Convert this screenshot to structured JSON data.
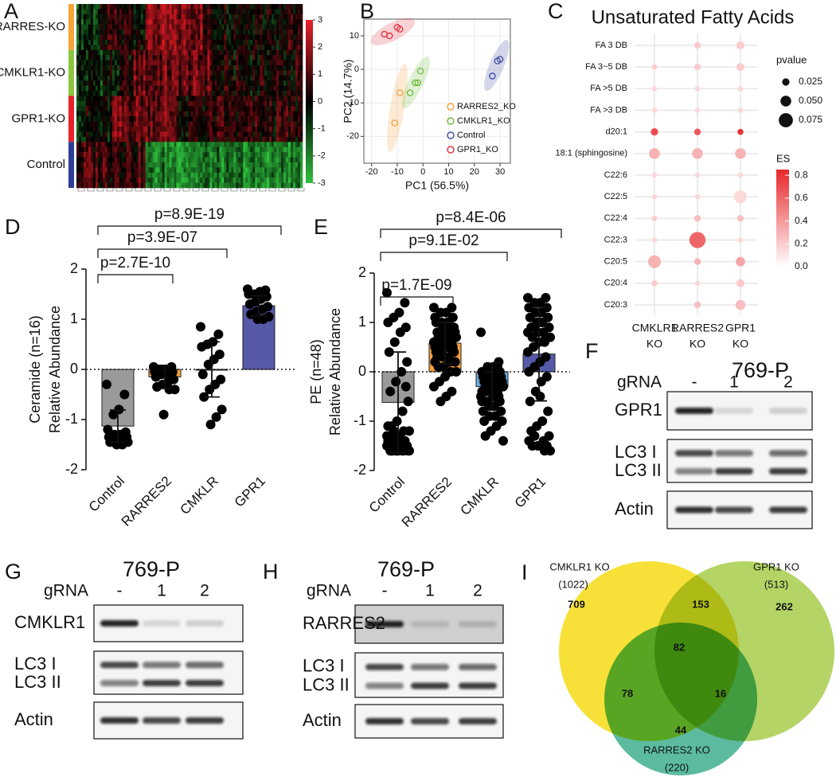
{
  "chart_data": [
    {
      "panel": "A",
      "type": "heatmap",
      "row_groups": [
        "RARRES-KO",
        "CMKLR1-KO",
        "GPR1-KO",
        "Control"
      ],
      "group_colors": [
        "#f7a437",
        "#8cc63f",
        "#e8232a",
        "#2e3d98"
      ],
      "zlim": [
        -3,
        3
      ],
      "zticks": [
        3,
        2,
        1,
        0,
        -1,
        -2,
        -3
      ]
    },
    {
      "panel": "B",
      "type": "scatter",
      "xlabel": "PC1 (56.5%)",
      "ylabel": "PC2 (14.7%)",
      "xlim": [
        -23,
        34
      ],
      "xticks": [
        -20,
        -10,
        0,
        10,
        20,
        30
      ],
      "ylim": [
        -28,
        15
      ],
      "yticks": [
        -20,
        -10,
        0,
        10
      ],
      "legend": "right",
      "series": [
        {
          "name": "RARRES2_KO",
          "color": "#f5a03c",
          "x": [
            -9,
            -11
          ],
          "y": [
            -7,
            -16
          ]
        },
        {
          "name": "CMKLR1_KO",
          "color": "#6dbb3c",
          "x": [
            -1,
            -3,
            -5,
            -2
          ],
          "y": [
            -0.5,
            -4,
            -7,
            -4
          ]
        },
        {
          "name": "Control",
          "color": "#3b4ba0",
          "x": [
            27,
            29,
            30
          ],
          "y": [
            -2,
            2.5,
            3
          ]
        },
        {
          "name": "GPR1_KO",
          "color": "#e0303a",
          "x": [
            -15,
            -13,
            -10,
            -9
          ],
          "y": [
            10.5,
            10,
            12.5,
            12
          ]
        }
      ]
    },
    {
      "panel": "C",
      "type": "dotplot",
      "title": "Unsaturated Fatty Acids",
      "rows": [
        "FA 3 DB",
        "FA 3~5 DB",
        "FA >5 DB",
        "FA >3 DB",
        "d20:1",
        "18:1 (sphingosine)",
        "C22:6",
        "C22:5",
        "C22:4",
        "C22:3",
        "C20:5",
        "C20:4",
        "C20:3"
      ],
      "columns": [
        [
          "CMKLR1",
          "KO"
        ],
        [
          "RARRES2",
          "KO"
        ],
        [
          "GPR1",
          "KO"
        ]
      ],
      "pvalue": [
        [
          null,
          0.02,
          0.03
        ],
        [
          0.01,
          0.02,
          0.03
        ],
        [
          0.01,
          0.01,
          0.01
        ],
        [
          0.01,
          0.01,
          0.01
        ],
        [
          0.025,
          0.02,
          0.015
        ],
        [
          0.05,
          0.05,
          0.05
        ],
        [
          0.01,
          0.01,
          0.01
        ],
        [
          0.01,
          0.01,
          0.065
        ],
        [
          0.01,
          0.02,
          0.02
        ],
        [
          0.01,
          0.09,
          0.01
        ],
        [
          0.065,
          0.02,
          0.04
        ],
        [
          0.015,
          0.01,
          0.03
        ],
        [
          null,
          0.02,
          0.045
        ]
      ],
      "es": [
        [
          null,
          0.2,
          0.2
        ],
        [
          0.2,
          0.2,
          0.2
        ],
        [
          0.15,
          0.15,
          0.15
        ],
        [
          0.15,
          0.15,
          0.15
        ],
        [
          0.7,
          0.65,
          0.8
        ],
        [
          0.3,
          0.3,
          0.3
        ],
        [
          0.15,
          0.15,
          0.15
        ],
        [
          0.15,
          0.15,
          0.15
        ],
        [
          0.2,
          0.25,
          0.25
        ],
        [
          0.15,
          0.6,
          0.15
        ],
        [
          0.3,
          0.3,
          0.35
        ],
        [
          0.2,
          0.15,
          0.2
        ],
        [
          null,
          0.25,
          0.25
        ]
      ],
      "size_title": "pvalue",
      "size_ticks": [
        0.025,
        {
          "value": 0.05,
          "label": "0.050"
        },
        0.075
      ],
      "color_title": "ES",
      "color_lim": [
        0,
        0.85
      ],
      "color_ticks": [
        {
          "value": 0,
          "label": "0.0"
        },
        0.2,
        0.4,
        0.6,
        0.8
      ],
      "color_range": [
        "#ffffff",
        "#e8262a"
      ]
    },
    {
      "panel": "D",
      "type": "bar",
      "categories": [
        "Control",
        "RARRES2",
        "CMKLR",
        "GPR1"
      ],
      "values": [
        -1.13,
        -0.15,
        0.0,
        1.27
      ],
      "errors": [
        0.32,
        0.23,
        0.55,
        0.2
      ],
      "points": [
        [
          -0.3,
          -0.5,
          -0.8,
          -0.9,
          -1.2,
          -1.25,
          -1.3,
          -1.3,
          -1.35,
          -1.35,
          -1.4,
          -1.4,
          -1.45,
          -1.45,
          -1.5,
          -1.5
        ],
        [
          0.05,
          0.05,
          0.0,
          0.0,
          -0.05,
          -0.05,
          -0.1,
          -0.1,
          -0.15,
          -0.2,
          -0.25,
          -0.3,
          -0.35,
          -0.4,
          -0.4,
          -0.9
        ],
        [
          0.85,
          0.7,
          0.55,
          0.5,
          0.45,
          0.3,
          0.2,
          0.1,
          -0.1,
          -0.2,
          -0.3,
          -0.4,
          -0.55,
          -0.8,
          -0.95,
          -1.1
        ],
        [
          1.6,
          1.58,
          1.55,
          1.5,
          1.5,
          1.45,
          1.4,
          1.35,
          1.3,
          1.25,
          1.2,
          1.15,
          1.1,
          1.05,
          1.0,
          1.0
        ]
      ],
      "colors": [
        "#9a9a9a",
        "#f5a03c",
        "#6aa9dc",
        "#5659a8"
      ],
      "ylim": [
        -2,
        2
      ],
      "yticks": [
        -2,
        -1,
        0,
        1,
        2
      ],
      "ylabel": [
        "Ceramide (n=16)",
        "Relative Abundance"
      ],
      "p_values": [
        "p=2.7E-10",
        "p=3.9E-07",
        "p=8.9E-19"
      ]
    },
    {
      "panel": "E",
      "type": "bar",
      "categories": [
        "Control",
        "RARRES2",
        "CMKLR",
        "GPR1"
      ],
      "values": [
        -0.62,
        0.58,
        -0.3,
        0.36
      ],
      "errors": [
        1.02,
        0.42,
        0.47,
        0.95
      ],
      "points": [
        [
          1.6,
          1.4,
          1.2,
          1.1,
          1.0,
          0.9,
          0.8,
          0.6,
          0.4,
          0.2,
          0.0,
          -0.2,
          -0.4,
          -0.6,
          -0.8,
          -1.0,
          -1.1,
          -1.2,
          -1.2,
          -1.3,
          -1.3,
          -1.3,
          -1.4,
          -1.4,
          -1.4,
          -1.4,
          -1.5,
          -1.5,
          -1.5,
          -1.5,
          -1.5,
          -1.5,
          -1.6,
          -1.6,
          -1.6,
          -1.6,
          -1.6,
          -1.6,
          -1.6,
          -1.6,
          -1.6,
          -1.6,
          -1.5,
          -1.4,
          -1.3,
          -1.2,
          -1.1,
          -0.3
        ],
        [
          1.3,
          1.3,
          1.2,
          1.2,
          1.1,
          1.1,
          1.0,
          1.0,
          1.0,
          0.9,
          0.9,
          0.9,
          0.8,
          0.8,
          0.8,
          0.8,
          0.7,
          0.7,
          0.7,
          0.7,
          0.6,
          0.6,
          0.6,
          0.6,
          0.5,
          0.5,
          0.5,
          0.5,
          0.4,
          0.4,
          0.4,
          0.3,
          0.3,
          0.3,
          0.2,
          0.2,
          0.1,
          0.1,
          0.0,
          0.0,
          -0.1,
          -0.2,
          -0.3,
          -0.4,
          -0.5,
          -0.6,
          0.2,
          0.4
        ],
        [
          0.8,
          0.2,
          0.1,
          0.1,
          0.0,
          0.0,
          0.0,
          -0.1,
          -0.1,
          -0.1,
          -0.2,
          -0.2,
          -0.2,
          -0.2,
          -0.3,
          -0.3,
          -0.3,
          -0.3,
          -0.4,
          -0.4,
          -0.4,
          -0.5,
          -0.5,
          -0.5,
          -0.6,
          -0.6,
          -0.6,
          -0.7,
          -0.7,
          -0.8,
          -0.8,
          -0.9,
          -0.9,
          -1.0,
          -1.0,
          -1.1,
          -1.2,
          -1.3,
          -1.4,
          0.1,
          -0.1,
          -0.2,
          -0.5,
          -0.6,
          -0.7,
          -0.3,
          -0.4,
          0.0
        ],
        [
          1.5,
          1.5,
          1.4,
          1.4,
          1.3,
          1.3,
          1.2,
          1.2,
          1.1,
          1.1,
          1.0,
          1.0,
          0.9,
          0.9,
          0.8,
          0.8,
          0.7,
          0.7,
          0.6,
          0.6,
          0.5,
          0.4,
          0.3,
          0.2,
          0.1,
          0.0,
          -0.1,
          -0.2,
          -0.4,
          -0.6,
          -0.8,
          -1.0,
          -1.1,
          -1.2,
          -1.3,
          -1.4,
          -1.5,
          -1.5,
          -1.6,
          -1.6,
          1.0,
          0.9,
          0.8,
          0.7,
          -0.5,
          -1.3,
          -1.4,
          -1.5
        ]
      ],
      "colors": [
        "#9a9a9a",
        "#f5a03c",
        "#6aa9dc",
        "#5659a8"
      ],
      "ylim": [
        -2,
        2
      ],
      "yticks": [
        -2,
        -1,
        0,
        1,
        2
      ],
      "ylabel": [
        "PE (n=48)",
        "Relative Abundance"
      ],
      "p_values": [
        "p=1.7E-09",
        "p=9.1E-02",
        "p=8.4E-06"
      ]
    },
    {
      "panel": "I",
      "type": "venn",
      "sets": [
        "CMKLR1 KO",
        "GPR1 KO",
        "RARRES2 KO"
      ],
      "set_size_labels": [
        "(1022)",
        "(513)",
        "(220)"
      ],
      "colors": [
        "#f5d800",
        "#9fc83a",
        "#2ea884"
      ],
      "region_counts": [
        709,
        262,
        44,
        153,
        78,
        16,
        82
      ]
    }
  ],
  "blots": [
    {
      "panel": "F",
      "cell_line": "769-P",
      "guide_label": "gRNA",
      "lanes": [
        "-",
        "1",
        "2"
      ],
      "boxes": [
        [
          "GPR1"
        ],
        [
          "LC3 I",
          "LC3 II"
        ],
        [
          "Actin"
        ]
      ]
    },
    {
      "panel": "G",
      "cell_line": "769-P",
      "guide_label": "gRNA",
      "lanes": [
        "-",
        "1",
        "2"
      ],
      "boxes": [
        [
          "CMKLR1"
        ],
        [
          "LC3 I",
          "LC3 II"
        ],
        [
          "Actin"
        ]
      ]
    },
    {
      "panel": "H",
      "cell_line": "769-P",
      "guide_label": "gRNA",
      "lanes": [
        "-",
        "1",
        "2"
      ],
      "boxes": [
        [
          "RARRES2"
        ],
        [
          "LC3 I",
          "LC3 II"
        ],
        [
          "Actin"
        ]
      ]
    }
  ]
}
